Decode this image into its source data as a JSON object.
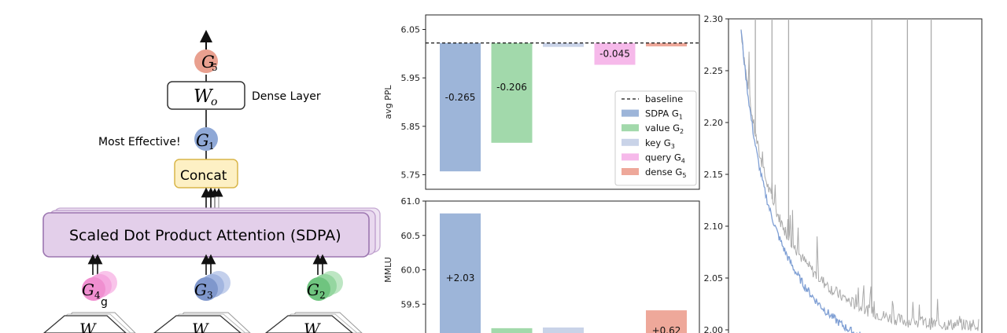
{
  "diagram": {
    "node_g5": {
      "base": "G",
      "sub": "5",
      "color": "#e9a08f"
    },
    "node_wo": {
      "base": "W",
      "sub": "o"
    },
    "dense_label": "Dense Layer",
    "effective_label": "Most Effective!",
    "node_g1": {
      "base": "G",
      "sub": "1",
      "color": "#8fa8d6"
    },
    "concat_label": "Concat",
    "sdpa_label": "Scaled Dot Product Attention (SDPA)",
    "node_g4": {
      "base": "G",
      "sub": "4",
      "color": "#f08fd0"
    },
    "node_g3": {
      "base": "G",
      "sub": "3",
      "color": "#7f97cc"
    },
    "node_g2": {
      "base": "G",
      "sub": "2",
      "color": "#6fc47f"
    },
    "g_label": "g",
    "w_partial": "W"
  },
  "chart_data": [
    {
      "type": "bar",
      "categories": [
        "SDPA G1",
        "value G2",
        "key G3",
        "query G4",
        "dense G5"
      ],
      "values": [
        5.757,
        5.816,
        6.014,
        5.977,
        6.015
      ],
      "baseline": 6.022,
      "data_labels": [
        "-0.265",
        "-0.206",
        "",
        "-0.045",
        ""
      ],
      "ylabel": "avg PPL",
      "ylim": [
        5.72,
        6.08
      ],
      "yticks": [
        "5.75",
        "5.85",
        "5.95",
        "6.05"
      ],
      "legend": {
        "placement": "lower-right",
        "entries": [
          {
            "label": "baseline",
            "sub": "",
            "color": "#111111",
            "style": "dashed"
          },
          {
            "label": "SDPA G",
            "sub": "1",
            "color": "#9db5d9",
            "style": "patch"
          },
          {
            "label": "value G",
            "sub": "2",
            "color": "#a2d9ab",
            "style": "patch"
          },
          {
            "label": "key G",
            "sub": "3",
            "color": "#c9d3e8",
            "style": "patch"
          },
          {
            "label": "query G",
            "sub": "4",
            "color": "#f6b9ea",
            "style": "patch"
          },
          {
            "label": "dense G",
            "sub": "5",
            "color": "#eea89a",
            "style": "patch"
          }
        ]
      },
      "colors": [
        "#9db5d9",
        "#a2d9ab",
        "#c9d3e8",
        "#f6b9ea",
        "#eea89a"
      ]
    },
    {
      "type": "bar",
      "categories": [
        "SDPA G1",
        "value G2",
        "key G3",
        "query G4",
        "dense G5"
      ],
      "values": [
        60.82,
        59.15,
        59.16,
        null,
        59.41
      ],
      "data_labels": [
        "+2.03",
        "",
        "",
        "",
        "+0.62"
      ],
      "ylabel": "MMLU",
      "ylim": [
        59.0,
        61.0
      ],
      "yticks": [
        "59.5",
        "60.0",
        "60.5",
        "61.0"
      ],
      "colors": [
        "#9db5d9",
        "#a2d9ab",
        "#c9d3e8",
        "#f6b9ea",
        "#eea89a"
      ]
    },
    {
      "type": "line",
      "ylim": [
        2.0,
        2.3
      ],
      "yticks": [
        "2.00",
        "2.05",
        "2.10",
        "2.15",
        "2.20",
        "2.25",
        "2.30"
      ],
      "series": [
        {
          "color": "#aaaaaa",
          "start": 2.29,
          "end": 2.005
        },
        {
          "color": "#7f9fd4",
          "start": 2.29,
          "end": 1.975
        }
      ],
      "spikes": [
        0.06,
        0.13,
        0.2,
        0.55,
        0.7,
        0.8
      ],
      "note_spikes_are_fraction_of_training": true
    }
  ]
}
